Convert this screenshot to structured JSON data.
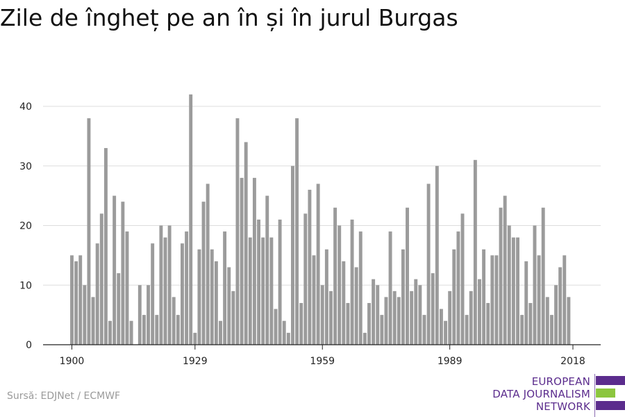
{
  "title": "Zile de îngheț pe an în și în jurul Burgas",
  "source": "Sursă: EDJNet / ECMWF",
  "logo": {
    "line1": "EUROPEAN",
    "line2": "DATA JOURNALISM",
    "line3": "NETWORK",
    "colors": {
      "purple": "#5b2c8d",
      "green": "#8cc63f"
    }
  },
  "colors": {
    "bar": "#9b9b9b",
    "grid": "#dddddd",
    "axis": "#222222"
  },
  "chart_data": {
    "type": "bar",
    "title": "Zile de îngheț pe an în și în jurul Burgas",
    "xlabel": "",
    "ylabel": "",
    "x_ticks": [
      1900,
      1929,
      1959,
      1989,
      2018
    ],
    "y_ticks": [
      0,
      10,
      20,
      30,
      40
    ],
    "ylim": [
      0,
      42
    ],
    "grid": true,
    "x": [
      1900,
      1901,
      1902,
      1903,
      1904,
      1905,
      1906,
      1907,
      1908,
      1909,
      1910,
      1911,
      1912,
      1913,
      1914,
      1915,
      1916,
      1917,
      1918,
      1919,
      1920,
      1921,
      1922,
      1923,
      1924,
      1925,
      1926,
      1927,
      1928,
      1929,
      1930,
      1931,
      1932,
      1933,
      1934,
      1935,
      1936,
      1937,
      1938,
      1939,
      1940,
      1941,
      1942,
      1943,
      1944,
      1945,
      1946,
      1947,
      1948,
      1949,
      1950,
      1951,
      1952,
      1953,
      1954,
      1955,
      1956,
      1957,
      1958,
      1959,
      1960,
      1961,
      1962,
      1963,
      1964,
      1965,
      1966,
      1967,
      1968,
      1969,
      1970,
      1971,
      1972,
      1973,
      1974,
      1975,
      1976,
      1977,
      1978,
      1979,
      1980,
      1981,
      1982,
      1983,
      1984,
      1985,
      1986,
      1987,
      1988,
      1989,
      1990,
      1991,
      1992,
      1993,
      1994,
      1995,
      1996,
      1997,
      1998,
      1999,
      2000,
      2001,
      2002,
      2003,
      2004,
      2005,
      2006,
      2007,
      2008,
      2009,
      2010,
      2011,
      2012,
      2013,
      2014,
      2015,
      2016,
      2017,
      2018
    ],
    "values": [
      15,
      14,
      15,
      10,
      38,
      8,
      17,
      22,
      33,
      4,
      25,
      12,
      24,
      19,
      4,
      0,
      10,
      5,
      10,
      17,
      5,
      20,
      18,
      20,
      8,
      5,
      17,
      19,
      42,
      2,
      16,
      24,
      27,
      16,
      14,
      4,
      19,
      13,
      9,
      38,
      28,
      34,
      18,
      28,
      21,
      18,
      25,
      18,
      6,
      21,
      4,
      2,
      30,
      38,
      7,
      22,
      26,
      15,
      27,
      10,
      16,
      9,
      23,
      20,
      14,
      7,
      21,
      13,
      19,
      2,
      7,
      11,
      10,
      5,
      8,
      19,
      9,
      8,
      16,
      23,
      9,
      11,
      10,
      5,
      27,
      12,
      30,
      6,
      4,
      9,
      16,
      19,
      22,
      5,
      9,
      31,
      11,
      16,
      7,
      15,
      15,
      23,
      25,
      20,
      18,
      18,
      5,
      14,
      7,
      20,
      15,
      23,
      8,
      5,
      10,
      13,
      15,
      8,
      0
    ]
  }
}
